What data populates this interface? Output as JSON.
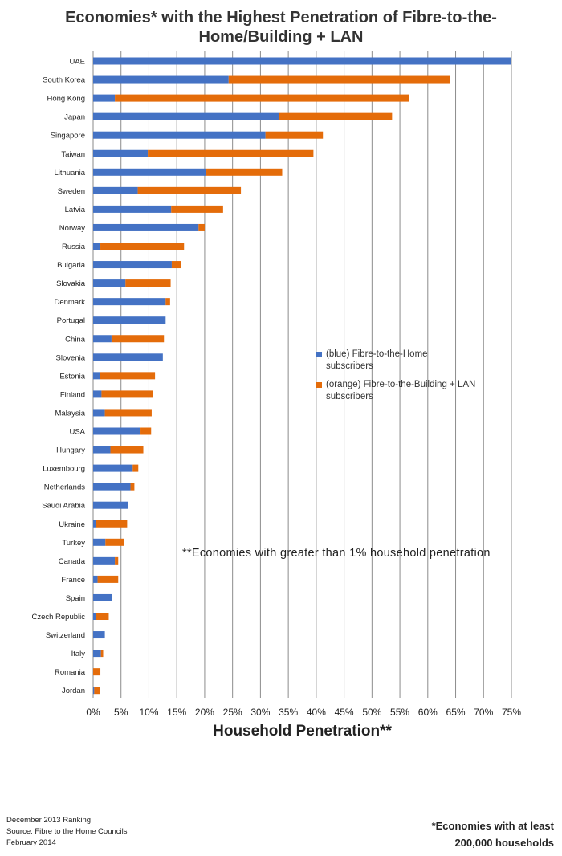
{
  "title_lines": [
    "Economies* with the Highest Penetration of Fibre-to-the-",
    "Home/Building + LAN"
  ],
  "note": "**Economies with greater than 1% household penetration",
  "footer_left": [
    "December 2013 Ranking",
    "Source: Fibre to the Home Councils",
    "February 2014"
  ],
  "footer_right": [
    "*Economies with at least",
    "200,000 households"
  ],
  "colors": {
    "ftth": "#4472c4",
    "fttb": "#e46c0a",
    "grid": "#8c8c8c"
  },
  "chart_data": {
    "type": "bar",
    "orientation": "horizontal",
    "stacked": true,
    "xlabel": "Household Penetration**",
    "xlim": [
      0,
      75
    ],
    "xticks": [
      "0%",
      "5%",
      "10%",
      "15%",
      "20%",
      "25%",
      "30%",
      "35%",
      "40%",
      "45%",
      "50%",
      "55%",
      "60%",
      "65%",
      "70%",
      "75%"
    ],
    "grid": "vertical",
    "legend_position": "middle-right",
    "categories": [
      "UAE",
      "South Korea",
      "Hong Kong",
      "Japan",
      "Singapore",
      "Taiwan",
      "Lithuania",
      "Sweden",
      "Latvia",
      "Norway",
      "Russia",
      "Bulgaria",
      "Slovakia",
      "Denmark",
      "Portugal",
      "China",
      "Slovenia",
      "Estonia",
      "Finland",
      "Malaysia",
      "USA",
      "Hungary",
      "Luxembourg",
      "Netherlands",
      "Saudi Arabia",
      "Ukraine",
      "Turkey",
      "Canada",
      "France",
      "Spain",
      "Czech Republic",
      "Switzerland",
      "Italy",
      "Romania",
      "Jordan"
    ],
    "series": [
      {
        "name": "(blue) Fibre-to-the-Home subscribers",
        "values": [
          75,
          24.3,
          3.9,
          33.3,
          30.9,
          9.8,
          20.3,
          8,
          14,
          18.9,
          1.3,
          14.1,
          5.8,
          13,
          13,
          3.3,
          12.5,
          1.2,
          1.5,
          2.1,
          8.5,
          3.1,
          7.1,
          6.7,
          6.2,
          0.5,
          2.2,
          3.9,
          0.8,
          3.4,
          0.5,
          2.1,
          1.4,
          0,
          0.2
        ],
        "color": "#4472c4"
      },
      {
        "name": "(orange) Fibre-to-the-Building + LAN subscribers",
        "values": [
          0,
          39.7,
          52.7,
          20.3,
          10.3,
          29.7,
          13.6,
          18.5,
          9.3,
          1.1,
          15,
          1.6,
          8.1,
          0.8,
          0,
          9.4,
          0,
          9.9,
          9.2,
          8.4,
          1.9,
          5.9,
          1,
          0.7,
          0,
          5.6,
          3.3,
          0.6,
          3.7,
          0,
          2.3,
          0,
          0.4,
          1.3,
          1
        ]
      }
    ]
  }
}
